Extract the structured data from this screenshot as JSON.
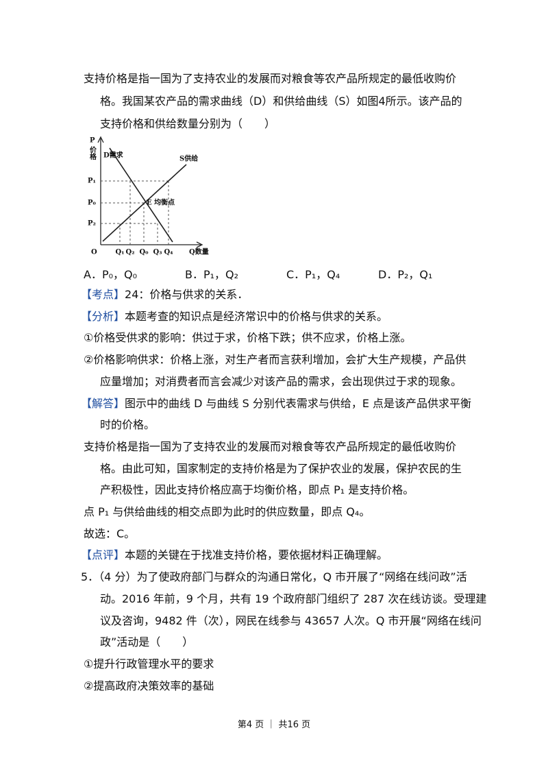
{
  "question4": {
    "stem": [
      "支持价格是指一国为了支持农业的发展而对粮食等农产品所规定的最低收购价",
      "格。我国某农产品的需求曲线（D）和供给曲线（S）如图4所示。该产品的",
      "支持价格和供给数量分别为（　　）"
    ],
    "figure": {
      "y_axis_label": "P",
      "y_axis_name": "价格",
      "demand_label": "D需求",
      "supply_label": "S供给",
      "price_ticks": [
        "P₁",
        "P₀",
        "P₂"
      ],
      "origin": "O",
      "quantity_ticks": [
        "Q₁",
        "Q₂",
        "Q₀",
        "Q₃",
        "Q₄"
      ],
      "x_axis_label": "Q数量",
      "equilibrium_label": "E 均衡点"
    },
    "options": [
      "A．P₀，Q₀",
      "B．P₁，Q₂",
      "C．P₁，Q₄",
      "D．P₂，Q₁"
    ]
  },
  "solution": [
    {
      "tag": "【考点】",
      "lines": [
        "24：价格与供求的关系．"
      ]
    },
    {
      "tag": "【分析】",
      "lines": [
        "本题考查的知识点是经济常识中的价格与供求的关系。"
      ]
    },
    {
      "lines": [
        "①价格受供求的影响：供过于求，价格下跌；供不应求，价格上涨。"
      ]
    },
    {
      "lines": [
        "②价格影响供求：价格上涨，对生产者而言获利增加，会扩大生产规模，产品供",
        "应量增加；对消费者而言会减少对该产品的需求，会出现供过于求的现象。"
      ]
    },
    {
      "tag": "【解答】",
      "lines": [
        "图示中的曲线 D 与曲线 S 分别代表需求与供给，E 点是该产品供求平衡",
        "时的价格。"
      ]
    },
    {
      "lines": [
        "支持价格是指一国为了支持农业的发展而对粮食等农产品所规定的最低收购价",
        "格。由此可知，国家制定的支持价格是为了保护农业的发展，保护农民的生",
        "产积极性，因此支持价格应高于均衡价格，即点 P₁ 是支持价格。"
      ]
    },
    {
      "lines": [
        "点 P₁ 与供给曲线的相交点即为此时的供应数量，即点 Q₄。"
      ]
    },
    {
      "lines": [
        "故选：C。"
      ]
    },
    {
      "tag": "【点评】",
      "lines": [
        "本题的关键在于找准支持价格，要依据材料正确理解。"
      ]
    }
  ],
  "question5": {
    "stem": [
      "5．（4 分）为了使政府部门与群众的沟通日常化，Q 市开展了“网络在线问政”活",
      "动。2016 年前，9 个月，共有 19 个政府部门组织了 287 次在线访谈。受理建",
      "议及咨询，9482 件（次），网民在线参与 43657 人次。Q 市开展“网络在线问",
      "政”活动是（　　）"
    ],
    "items": [
      "①提升行政管理水平的要求",
      "②提高政府决策效率的基础"
    ]
  },
  "footer": "第4 页 ｜ 共16 页"
}
